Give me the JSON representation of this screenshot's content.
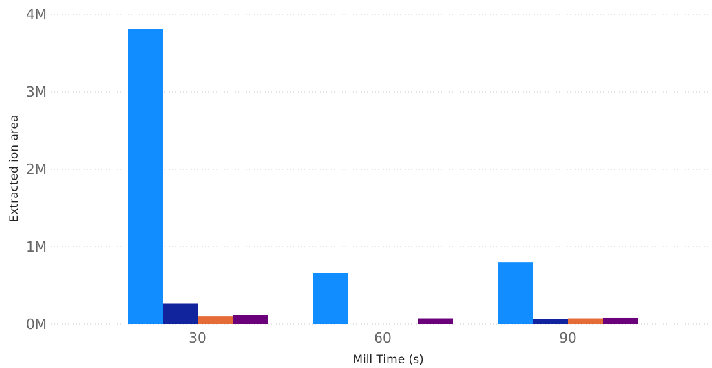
{
  "chart_data": {
    "type": "bar",
    "xlabel": "Mill Time (s)",
    "ylabel": "Extracted ion area",
    "ylim": [
      0,
      4000000
    ],
    "y_ticks": [
      {
        "value": 0,
        "label": "0M"
      },
      {
        "value": 1000000,
        "label": "1M"
      },
      {
        "value": 2000000,
        "label": "2M"
      },
      {
        "value": 3000000,
        "label": "3M"
      },
      {
        "value": 4000000,
        "label": "4M"
      }
    ],
    "categories": [
      "30",
      "60",
      "90"
    ],
    "grid": true,
    "legend": "none",
    "series": [
      {
        "color": "#118DFF",
        "values": [
          3810000,
          660000,
          795000
        ]
      },
      {
        "color": "#12239E",
        "values": [
          270000,
          0,
          65000
        ]
      },
      {
        "color": "#E66C37",
        "values": [
          105000,
          0,
          75000
        ]
      },
      {
        "color": "#6B007B",
        "values": [
          115000,
          75000,
          80000
        ]
      }
    ]
  }
}
